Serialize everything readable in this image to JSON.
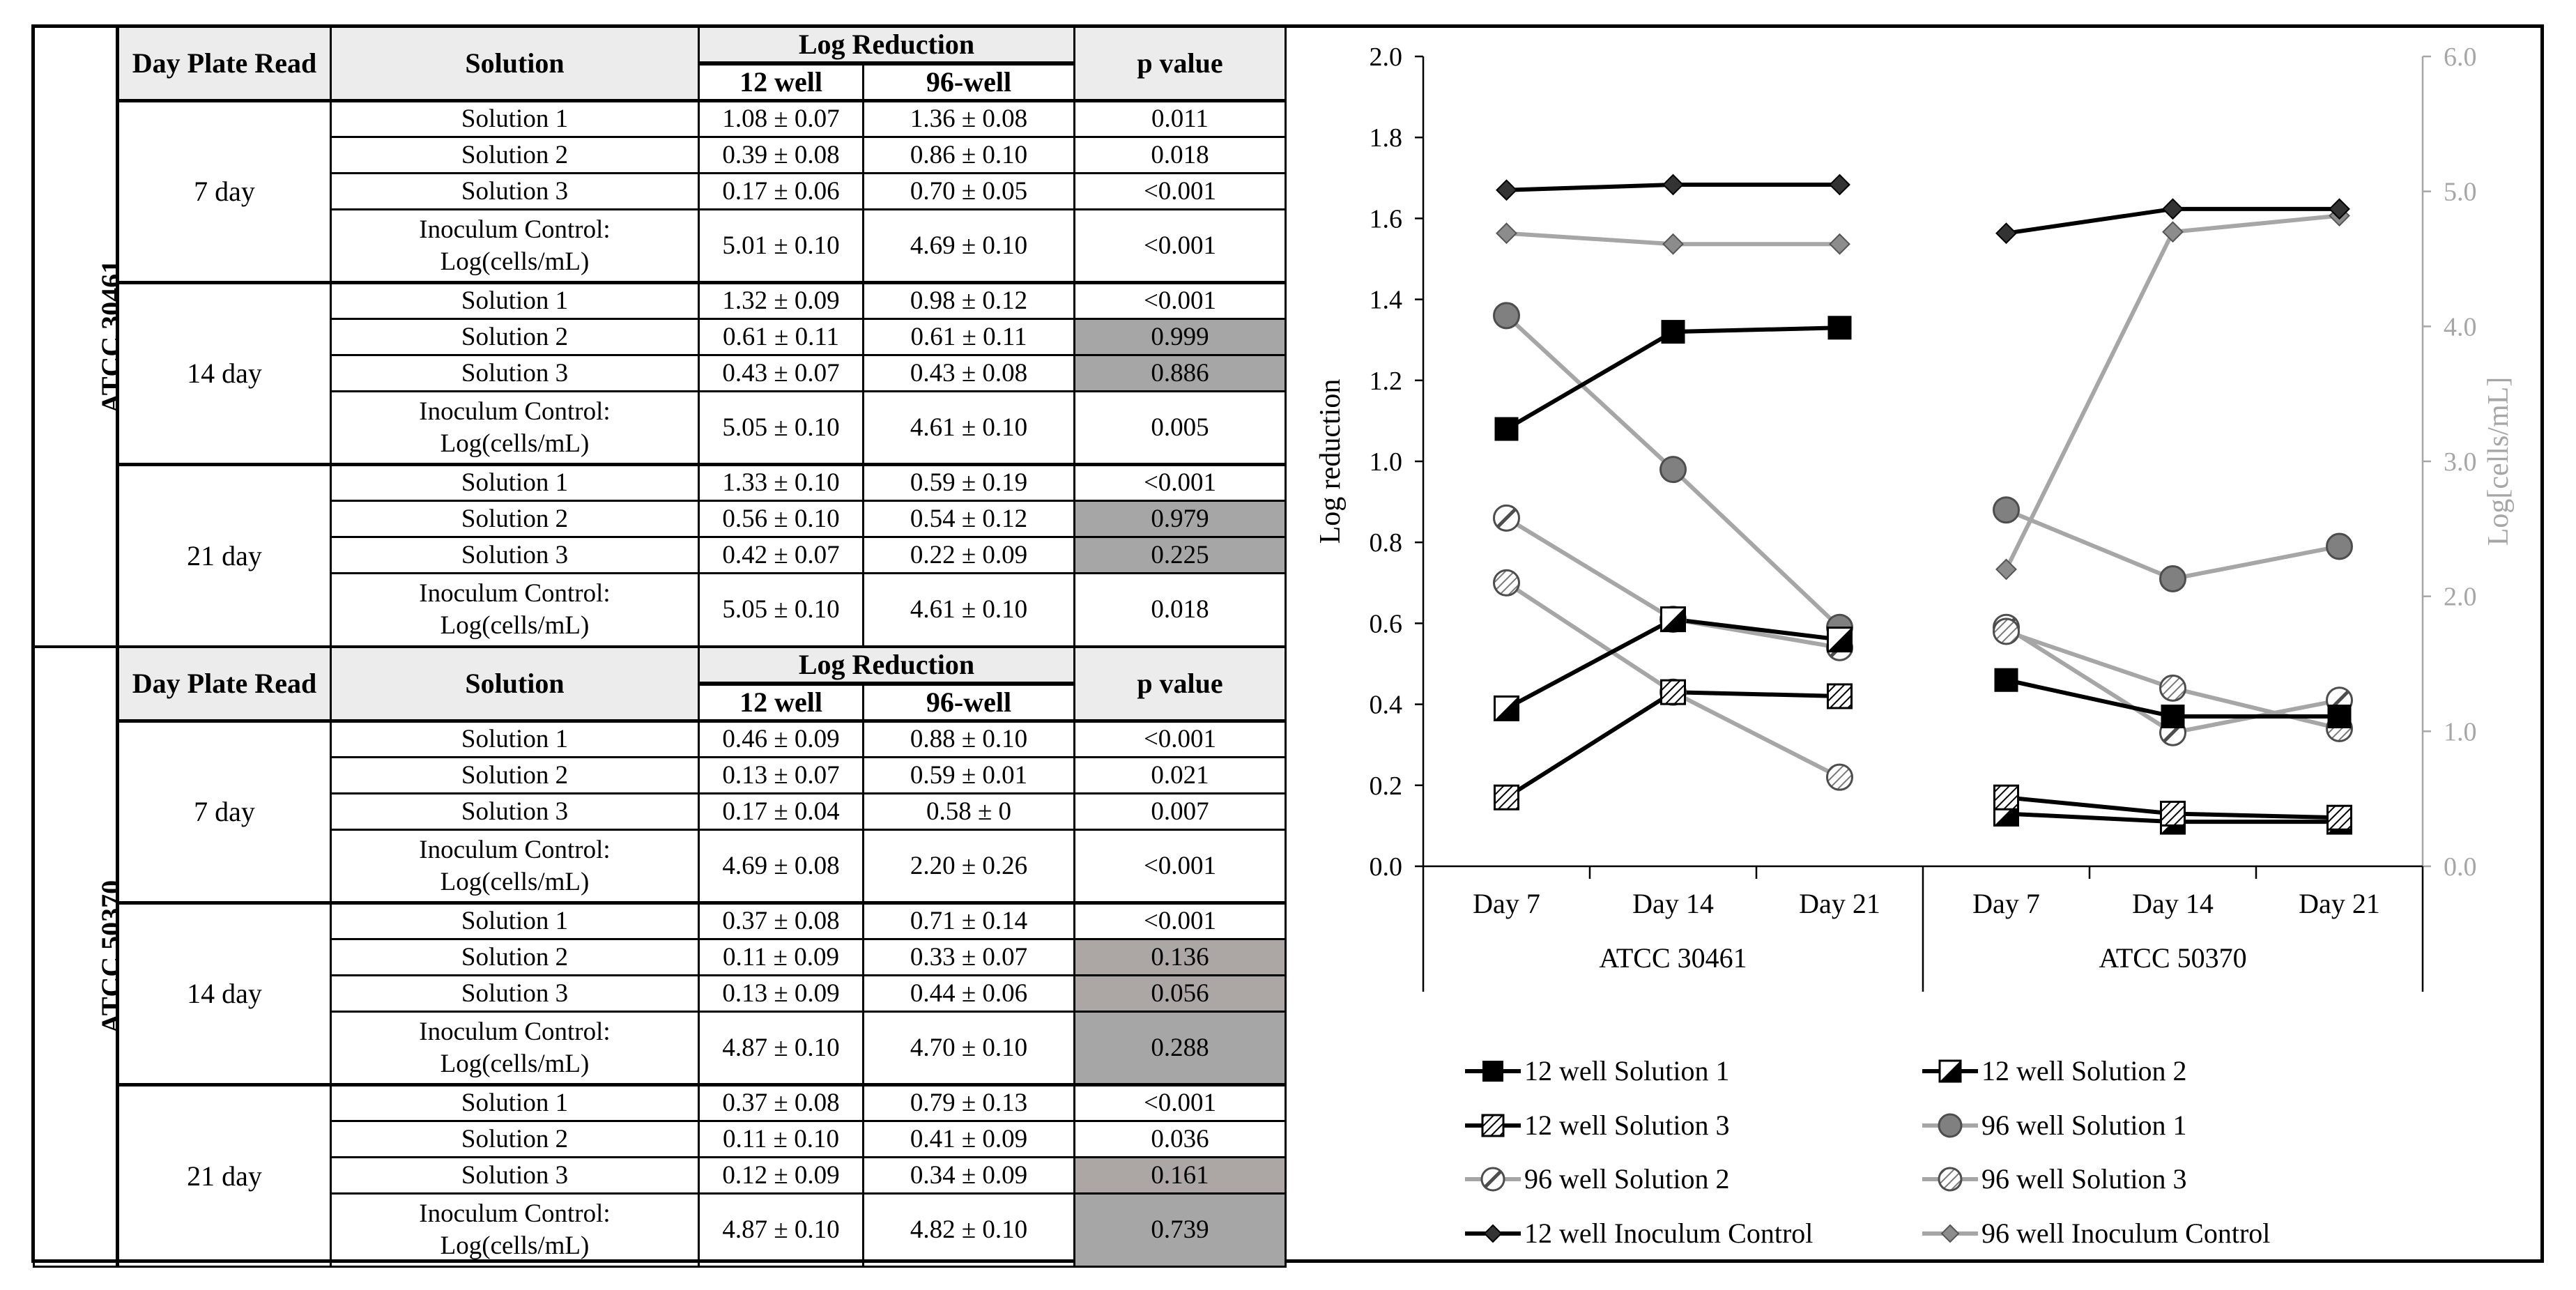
{
  "table": {
    "headers": {
      "day": "Day Plate Read",
      "solution": "Solution",
      "log_reduction": "Log Reduction",
      "twelve": "12 well",
      "ninety_six": "96-well",
      "p": "p value"
    },
    "strains": [
      {
        "name": "ATCC 30461",
        "days": [
          {
            "day": "7 day",
            "rows": [
              {
                "solution": "Solution 1",
                "w12": "1.08 ± 0.07",
                "w96": "1.36 ± 0.08",
                "p": "0.011",
                "shade": ""
              },
              {
                "solution": "Solution 2",
                "w12": "0.39 ± 0.08",
                "w96": "0.86 ± 0.10",
                "p": "0.018",
                "shade": ""
              },
              {
                "solution": "Solution 3",
                "w12": "0.17 ± 0.06",
                "w96": "0.70 ± 0.05",
                "p": "<0.001",
                "shade": ""
              },
              {
                "solution": "Inoculum Control:",
                "solution2": "Log(cells/mL)",
                "w12": "5.01 ± 0.10",
                "w96": "4.69 ± 0.10",
                "p": "<0.001",
                "shade": ""
              }
            ]
          },
          {
            "day": "14 day",
            "rows": [
              {
                "solution": "Solution 1",
                "w12": "1.32 ± 0.09",
                "w96": "0.98 ± 0.12",
                "p": "<0.001",
                "shade": ""
              },
              {
                "solution": "Solution 2",
                "w12": "0.61 ± 0.11",
                "w96": "0.61 ± 0.11",
                "p": "0.999",
                "shade": "shade"
              },
              {
                "solution": "Solution 3",
                "w12": "0.43 ± 0.07",
                "w96": "0.43 ± 0.08",
                "p": "0.886",
                "shade": "shade"
              },
              {
                "solution": "Inoculum Control:",
                "solution2": "Log(cells/mL)",
                "w12": "5.05 ± 0.10",
                "w96": "4.61 ± 0.10",
                "p": "0.005",
                "shade": ""
              }
            ]
          },
          {
            "day": "21 day",
            "rows": [
              {
                "solution": "Solution 1",
                "w12": "1.33 ± 0.10",
                "w96": "0.59 ± 0.19",
                "p": "<0.001",
                "shade": ""
              },
              {
                "solution": "Solution 2",
                "w12": "0.56 ± 0.10",
                "w96": "0.54 ± 0.12",
                "p": "0.979",
                "shade": "shade"
              },
              {
                "solution": "Solution 3",
                "w12": "0.42 ± 0.07",
                "w96": "0.22 ± 0.09",
                "p": "0.225",
                "shade": "shade"
              },
              {
                "solution": "Inoculum Control:",
                "solution2": "Log(cells/mL)",
                "w12": "5.05 ± 0.10",
                "w96": "4.61 ± 0.10",
                "p": "0.018",
                "shade": ""
              }
            ]
          }
        ]
      },
      {
        "name": "ATCC 50370",
        "days": [
          {
            "day": "7 day",
            "rows": [
              {
                "solution": "Solution 1",
                "w12": "0.46 ± 0.09",
                "w96": "0.88 ± 0.10",
                "p": "<0.001",
                "shade": ""
              },
              {
                "solution": "Solution 2",
                "w12": "0.13 ± 0.07",
                "w96": "0.59 ± 0.01",
                "p": "0.021",
                "shade": ""
              },
              {
                "solution": "Solution 3",
                "w12": "0.17 ± 0.04",
                "w96": "0.58 ± 0",
                "p": "0.007",
                "shade": ""
              },
              {
                "solution": "Inoculum Control:",
                "solution2": "Log(cells/mL)",
                "w12": "4.69 ± 0.08",
                "w96": "2.20 ± 0.26",
                "p": "<0.001",
                "shade": ""
              }
            ]
          },
          {
            "day": "14 day",
            "rows": [
              {
                "solution": "Solution 1",
                "w12": "0.37 ± 0.08",
                "w96": "0.71 ± 0.14",
                "p": "<0.001",
                "shade": ""
              },
              {
                "solution": "Solution 2",
                "w12": "0.11 ± 0.09",
                "w96": "0.33 ± 0.07",
                "p": "0.136",
                "shade": "shade2"
              },
              {
                "solution": "Solution 3",
                "w12": "0.13 ± 0.09",
                "w96": "0.44 ± 0.06",
                "p": "0.056",
                "shade": "shade2"
              },
              {
                "solution": "Inoculum Control:",
                "solution2": "Log(cells/mL)",
                "w12": "4.87 ± 0.10",
                "w96": "4.70 ± 0.10",
                "p": "0.288",
                "shade": "shade"
              }
            ]
          },
          {
            "day": "21 day",
            "rows": [
              {
                "solution": "Solution 1",
                "w12": "0.37 ± 0.08",
                "w96": "0.79 ± 0.13",
                "p": "<0.001",
                "shade": ""
              },
              {
                "solution": "Solution 2",
                "w12": "0.11 ± 0.10",
                "w96": "0.41 ± 0.09",
                "p": "0.036",
                "shade": ""
              },
              {
                "solution": "Solution 3",
                "w12": "0.12 ± 0.09",
                "w96": "0.34 ± 0.09",
                "p": "0.161",
                "shade": "shade2"
              },
              {
                "solution": "Inoculum Control:",
                "solution2": "Log(cells/mL)",
                "w12": "4.87 ± 0.10",
                "w96": "4.82 ± 0.10",
                "p": "0.739",
                "shade": "shade"
              }
            ]
          }
        ]
      }
    ]
  },
  "chart_data": {
    "type": "line",
    "ylabel": "Log reduction",
    "y2label": "Log[cells/mL]",
    "ylim": [
      0,
      2.0
    ],
    "y2lim": [
      0,
      6.0
    ],
    "y_ticks": [
      "0.0",
      "0.2",
      "0.4",
      "0.6",
      "0.8",
      "1.0",
      "1.2",
      "1.4",
      "1.6",
      "1.8",
      "2.0"
    ],
    "y2_ticks": [
      "0.0",
      "1.0",
      "2.0",
      "3.0",
      "4.0",
      "5.0",
      "6.0"
    ],
    "groups": [
      {
        "name": "ATCC 30461",
        "categories": [
          "Day 7",
          "Day 14",
          "Day 21"
        ]
      },
      {
        "name": "ATCC 50370",
        "categories": [
          "Day 7",
          "Day 14",
          "Day 21"
        ]
      }
    ],
    "series": [
      {
        "name": "12 well Solution 1",
        "axis": "left",
        "color": "#000000",
        "marker": "square-filled",
        "values": [
          [
            1.08,
            1.32,
            1.33
          ],
          [
            0.46,
            0.37,
            0.37
          ]
        ]
      },
      {
        "name": "12 well Solution 2",
        "axis": "left",
        "color": "#000000",
        "marker": "square-half",
        "values": [
          [
            0.39,
            0.61,
            0.56
          ],
          [
            0.13,
            0.11,
            0.11
          ]
        ]
      },
      {
        "name": "12 well Solution 3",
        "axis": "left",
        "color": "#000000",
        "marker": "square-hatch",
        "values": [
          [
            0.17,
            0.43,
            0.42
          ],
          [
            0.17,
            0.13,
            0.12
          ]
        ]
      },
      {
        "name": "96 well Solution 1",
        "axis": "left",
        "color": "#a6a6a6",
        "marker": "circle-filled",
        "values": [
          [
            1.36,
            0.98,
            0.59
          ],
          [
            0.88,
            0.71,
            0.79
          ]
        ]
      },
      {
        "name": "96 well Solution 2",
        "axis": "left",
        "color": "#a6a6a6",
        "marker": "circle-half",
        "values": [
          [
            0.86,
            0.61,
            0.54
          ],
          [
            0.59,
            0.33,
            0.41
          ]
        ]
      },
      {
        "name": "96 well Solution 3",
        "axis": "left",
        "color": "#a6a6a6",
        "marker": "circle-hatch",
        "values": [
          [
            0.7,
            0.43,
            0.22
          ],
          [
            0.58,
            0.44,
            0.34
          ]
        ]
      },
      {
        "name": "12 well Inoculum Control",
        "axis": "right",
        "color": "#000000",
        "marker": "diamond-dark",
        "values": [
          [
            5.01,
            5.05,
            5.05
          ],
          [
            4.69,
            4.87,
            4.87
          ]
        ]
      },
      {
        "name": "96 well Inoculum Control",
        "axis": "right",
        "color": "#a6a6a6",
        "marker": "diamond-gray",
        "values": [
          [
            4.69,
            4.61,
            4.61
          ],
          [
            2.2,
            4.7,
            4.82
          ]
        ]
      }
    ],
    "legend": "bottom"
  }
}
